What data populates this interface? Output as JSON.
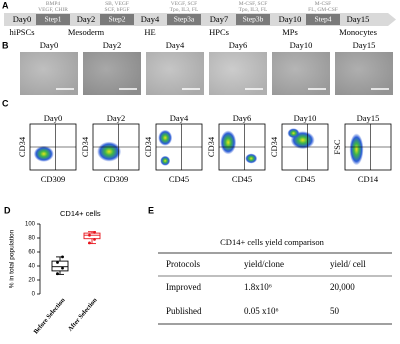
{
  "panel_a": {
    "label": "A",
    "stages": [
      {
        "day": "Day0",
        "cell": "hiPSCs"
      },
      {
        "day": "Day2",
        "cell": "Mesoderm"
      },
      {
        "day": "Day4",
        "cell": "HE"
      },
      {
        "day": "Day7",
        "cell": "HPCs"
      },
      {
        "day": "Day10",
        "cell": "MPs"
      },
      {
        "day": "Day15",
        "cell": "Monocytes"
      }
    ],
    "steps": [
      {
        "name": "Step1",
        "factors": [
          "BMP4",
          "VEGF, CHIR"
        ]
      },
      {
        "name": "Step2",
        "factors": [
          "SB, VEGF",
          "SCF, bFGF"
        ]
      },
      {
        "name": "Step3a",
        "factors": [
          "VEGF, SCF",
          "Tpo, IL3, FL"
        ]
      },
      {
        "name": "Step3b",
        "factors": [
          "M-CSF, SCF",
          "Tpo, IL3, FL"
        ]
      },
      {
        "name": "Step4",
        "factors": [
          "M-CSF",
          "FL, GM-CSF"
        ]
      }
    ]
  },
  "panel_b": {
    "label": "B",
    "days": [
      "Day0",
      "Day2",
      "Day4",
      "Day6",
      "Day10",
      "Day15"
    ]
  },
  "panel_c": {
    "label": "C",
    "plots": [
      {
        "day": "Day0",
        "y_label": "CD34",
        "x_label": "CD309"
      },
      {
        "day": "Day2",
        "y_label": "CD34",
        "x_label": "CD309"
      },
      {
        "day": "Day4",
        "y_label": "CD34",
        "x_label": "CD45"
      },
      {
        "day": "Day6",
        "y_label": "CD34",
        "x_label": "CD45"
      },
      {
        "day": "Day10",
        "y_label": "CD34",
        "x_label": "CD45"
      },
      {
        "day": "Day15",
        "y_label": "FSC",
        "x_label": "CD14"
      }
    ]
  },
  "chart_data": {
    "type": "box",
    "panel_label": "D",
    "title": "CD14+ cells",
    "y_label": "% in total population",
    "categories": [
      "Before Selection",
      "After Selection"
    ],
    "boxes": [
      {
        "color": "#000000",
        "min": 28,
        "q1": 33,
        "median": 39,
        "q3": 47,
        "max": 53,
        "points": [
          29,
          37,
          45,
          53
        ]
      },
      {
        "color": "#e8141c",
        "min": 72,
        "q1": 79,
        "median": 84,
        "q3": 87,
        "max": 89,
        "points": [
          73,
          78,
          84,
          88
        ]
      }
    ],
    "ylim": [
      0,
      100
    ],
    "yticks": [
      0,
      20,
      40,
      60,
      80,
      100
    ]
  },
  "panel_e": {
    "label": "E",
    "title": "CD14+ cells yield comparison",
    "header": [
      "Protocols",
      "yield/clone",
      "yield/ cell"
    ],
    "rows": [
      [
        "Improved",
        "1.8x10⁶",
        "20,000"
      ],
      [
        "Published",
        "0.05 x10⁶",
        "50"
      ]
    ]
  }
}
